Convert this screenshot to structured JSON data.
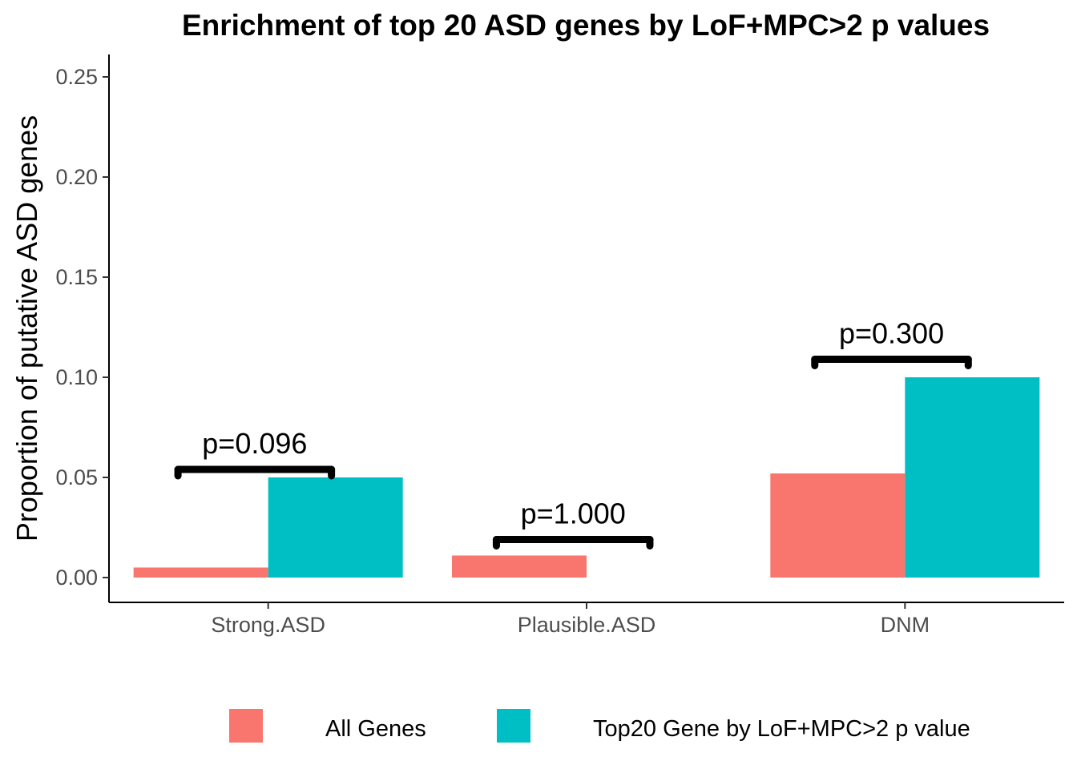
{
  "chart_data": {
    "type": "bar",
    "title": "Enrichment of top 20 ASD genes by LoF+MPC>2 p values",
    "xlabel": "",
    "ylabel": "Proportion of putative ASD genes",
    "categories": [
      "Strong.ASD",
      "Plausible.ASD",
      "DNM"
    ],
    "series": [
      {
        "name": "All Genes",
        "color": "#F8766D",
        "values": [
          0.005,
          0.011,
          0.052
        ]
      },
      {
        "name": "Top20 Gene by LoF+MPC>2 p value",
        "color": "#00BFC4",
        "values": [
          0.05,
          0.0,
          0.1
        ]
      }
    ],
    "ylim": [
      -0.013,
      0.26
    ],
    "yticks": [
      0.0,
      0.05,
      0.1,
      0.15,
      0.2,
      0.25
    ],
    "ytick_labels": [
      "0.00",
      "0.05",
      "0.10",
      "0.15",
      "0.20",
      "0.25"
    ],
    "grid": false,
    "legend_position": "bottom",
    "annotations": [
      {
        "category": "Strong.ASD",
        "text": "p=0.096",
        "bracket_y": 0.054
      },
      {
        "category": "Plausible.ASD",
        "text": "p=1.000",
        "bracket_y": 0.019
      },
      {
        "category": "DNM",
        "text": "p=0.300",
        "bracket_y": 0.109
      }
    ]
  }
}
